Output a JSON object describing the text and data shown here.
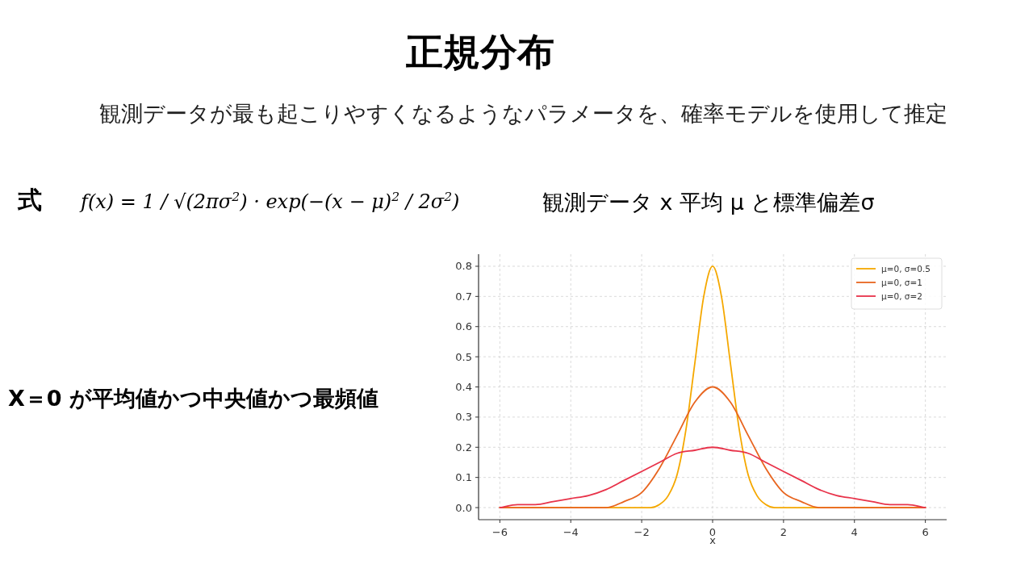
{
  "chart_data": {
    "type": "line",
    "title": "正規分布",
    "subtitle": "観測データが最も起こりやすくなるようなパラメータを、確率モデルを使用して推定",
    "annotations": [
      "式",
      "f(x) = 1 / √(2πσ$^{2}$) · exp(−(x − μ)$^{2}$ / 2σ$^{2}$)",
      "観測データ x  平均 μ と標準偏差σ",
      "X＝0 が平均値かつ中央値かつ最頻値"
    ],
    "xlabel": "x",
    "xlim": [
      -6.6,
      6.6
    ],
    "ylim": [
      -0.04,
      0.84
    ],
    "xticks": [
      {
        "value": -6,
        "label": "−6"
      },
      {
        "value": -4,
        "label": "−4"
      },
      {
        "value": -2,
        "label": "−2"
      },
      0,
      2,
      4,
      6
    ],
    "yticks": [
      {
        "value": 0,
        "label": "0.0"
      },
      0.1,
      0.2,
      0.3,
      0.4,
      0.5,
      0.6,
      0.7,
      0.8
    ],
    "grid": true,
    "legend": "top right",
    "line_style": "solid",
    "marker": "none",
    "series": [
      {
        "name": "μ=0, σ=0.5",
        "color": "#f5a800",
        "x": [
          -6,
          -3,
          -2,
          -1.75,
          -1.5,
          -1.25,
          -1,
          -0.75,
          -0.5,
          -0.25,
          0,
          0.25,
          0.5,
          0.75,
          1,
          1.25,
          1.5,
          1.75,
          2,
          3,
          6
        ],
        "values": [
          0,
          0,
          0,
          0,
          0.01,
          0.04,
          0.11,
          0.26,
          0.48,
          0.7,
          0.8,
          0.7,
          0.48,
          0.26,
          0.11,
          0.04,
          0.01,
          0,
          0,
          0,
          0
        ]
      },
      {
        "name": "μ=0, σ=1",
        "color": "#e8651f",
        "x": [
          -6,
          -5,
          -4,
          -3.5,
          -3,
          -2.5,
          -2,
          -1.5,
          -1,
          -0.5,
          0,
          0.5,
          1,
          1.5,
          2,
          2.5,
          3,
          3.5,
          4,
          5,
          6
        ],
        "values": [
          0,
          0,
          0,
          0,
          0,
          0.02,
          0.05,
          0.13,
          0.24,
          0.35,
          0.4,
          0.35,
          0.24,
          0.13,
          0.05,
          0.02,
          0,
          0,
          0,
          0,
          0
        ]
      },
      {
        "name": "μ=0, σ=2",
        "color": "#e8334a",
        "x": [
          -6,
          -5.5,
          -5,
          -4.5,
          -4,
          -3.5,
          -3,
          -2.5,
          -2,
          -1.5,
          -1,
          -0.5,
          0,
          0.5,
          1,
          1.5,
          2,
          2.5,
          3,
          3.5,
          4,
          4.5,
          5,
          5.5,
          6
        ],
        "values": [
          0,
          0.01,
          0.01,
          0.02,
          0.03,
          0.04,
          0.06,
          0.09,
          0.12,
          0.15,
          0.18,
          0.19,
          0.2,
          0.19,
          0.18,
          0.15,
          0.12,
          0.09,
          0.06,
          0.04,
          0.03,
          0.02,
          0.01,
          0.01,
          0
        ]
      }
    ]
  }
}
